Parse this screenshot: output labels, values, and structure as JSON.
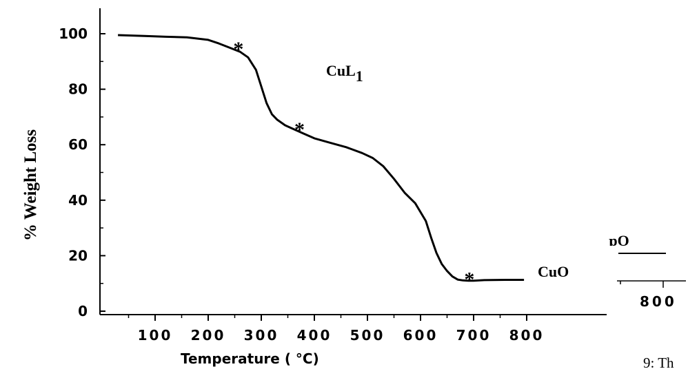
{
  "chart_data": {
    "type": "line",
    "title": "",
    "xlabel": "Temperature ( °C)",
    "ylabel": "% Weight Loss",
    "xlim": [
      30,
      800
    ],
    "ylim": [
      0,
      110
    ],
    "x_ticks": [
      100,
      200,
      300,
      400,
      500,
      600,
      700,
      800
    ],
    "y_ticks": [
      0,
      20,
      40,
      60,
      80,
      100
    ],
    "series": [
      {
        "name": "",
        "x": [
          30,
          80,
          120,
          160,
          200,
          220,
          240,
          260,
          275,
          290,
          300,
          310,
          320,
          330,
          345,
          360,
          380,
          400,
          430,
          460,
          490,
          510,
          530,
          550,
          570,
          590,
          610,
          620,
          630,
          640,
          650,
          660,
          670,
          680,
          690,
          700,
          720,
          760,
          795
        ],
        "y": [
          99.5,
          99.2,
          98.9,
          98.7,
          97.8,
          96.5,
          95.0,
          93.5,
          91.5,
          87,
          81,
          75,
          71,
          69,
          67,
          65.7,
          64,
          62.3,
          60.7,
          59.1,
          57,
          55.2,
          52.2,
          47.7,
          42.7,
          38.9,
          32.5,
          26.5,
          21,
          17,
          14.5,
          12.5,
          11.4,
          11.1,
          11.0,
          11.0,
          11.2,
          11.3,
          11.3
        ]
      }
    ],
    "annotations": [
      {
        "text": "*",
        "x": 257,
        "y": 96
      },
      {
        "text": "*",
        "x": 372,
        "y": 67
      },
      {
        "text": "*",
        "x": 692,
        "y": 13
      }
    ],
    "labels": {
      "compound": "CuL",
      "compound_sub": "1",
      "residue": "CuO"
    },
    "fragments": {
      "cut_label": "ɒO",
      "cut_tick": "800",
      "caption": "9: Th"
    },
    "grid": false,
    "legend": "none"
  }
}
